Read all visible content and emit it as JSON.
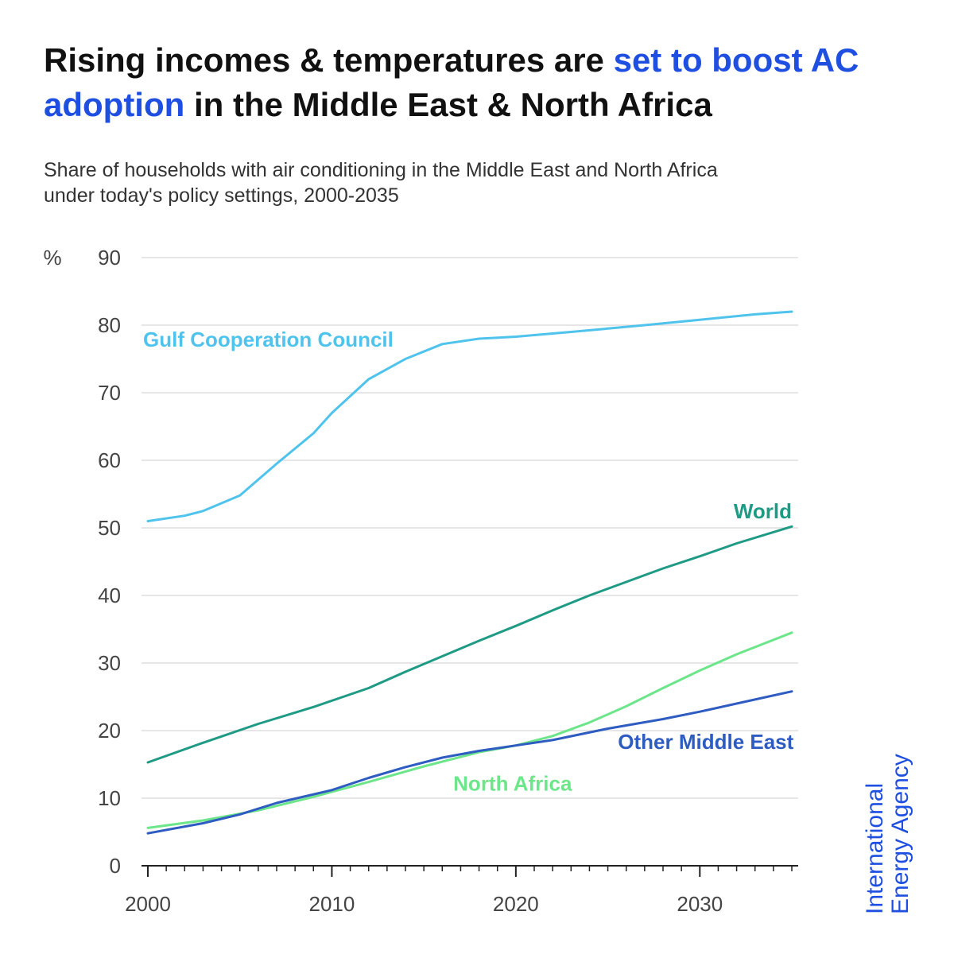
{
  "title": {
    "part1": "Rising incomes & temperatures are ",
    "highlight": "set to boost AC adoption",
    "part2": " in the Middle East & North Africa"
  },
  "subtitle": {
    "line1": "Share of households with air conditioning in the Middle East and North Africa",
    "line2": "under today's policy settings, 2000-2035"
  },
  "brand": {
    "line1": "International",
    "line2": "Energy Agency"
  },
  "colors": {
    "accent": "#1f4fe0",
    "gcc": "#4fc3ec",
    "world": "#1f9a85",
    "north_africa": "#6de58a",
    "other_me": "#2e5cc0",
    "grid": "#dddddd",
    "axis": "#222222"
  },
  "chart_data": {
    "type": "line",
    "ylabel": "%",
    "xlim": [
      2000,
      2035
    ],
    "ylim": [
      0,
      90
    ],
    "xticks": [
      2000,
      2010,
      2020,
      2030
    ],
    "yticks": [
      0,
      10,
      20,
      30,
      40,
      50,
      60,
      70,
      80,
      90
    ],
    "grid": "horizontal",
    "series": [
      {
        "name": "Gulf Cooperation Council",
        "color": "#4fc3ec",
        "x": [
          2000,
          2002,
          2003,
          2005,
          2007,
          2009,
          2010,
          2012,
          2014,
          2016,
          2018,
          2020,
          2023,
          2025,
          2027,
          2030,
          2033,
          2035
        ],
        "y": [
          51,
          51.8,
          52.5,
          54.8,
          59.5,
          64,
          67,
          72,
          75,
          77.2,
          78,
          78.3,
          79,
          79.5,
          80,
          80.8,
          81.6,
          82
        ]
      },
      {
        "name": "World",
        "color": "#1f9a85",
        "x": [
          2000,
          2003,
          2006,
          2009,
          2012,
          2014,
          2016,
          2018,
          2020,
          2022,
          2024,
          2026,
          2028,
          2030,
          2032,
          2035
        ],
        "y": [
          15.3,
          18.2,
          21,
          23.5,
          26.3,
          28.7,
          31,
          33.3,
          35.5,
          37.8,
          40,
          42,
          44,
          45.8,
          47.7,
          50.2
        ]
      },
      {
        "name": "North Africa",
        "color": "#6de58a",
        "x": [
          2000,
          2003,
          2006,
          2009,
          2012,
          2015,
          2018,
          2020,
          2022,
          2024,
          2026,
          2028,
          2030,
          2032,
          2035
        ],
        "y": [
          5.6,
          6.7,
          8.2,
          10.2,
          12.4,
          14.7,
          16.8,
          17.8,
          19.2,
          21.2,
          23.6,
          26.3,
          28.9,
          31.3,
          34.5
        ]
      },
      {
        "name": "Other Middle East",
        "color": "#2e5cc0",
        "x": [
          2000,
          2003,
          2005,
          2007,
          2010,
          2012,
          2014,
          2016,
          2018,
          2020,
          2022,
          2025,
          2028,
          2030,
          2033,
          2035
        ],
        "y": [
          4.8,
          6.3,
          7.6,
          9.3,
          11.2,
          13,
          14.6,
          16,
          17,
          17.8,
          18.6,
          20.3,
          21.7,
          22.8,
          24.6,
          25.8
        ]
      }
    ]
  }
}
